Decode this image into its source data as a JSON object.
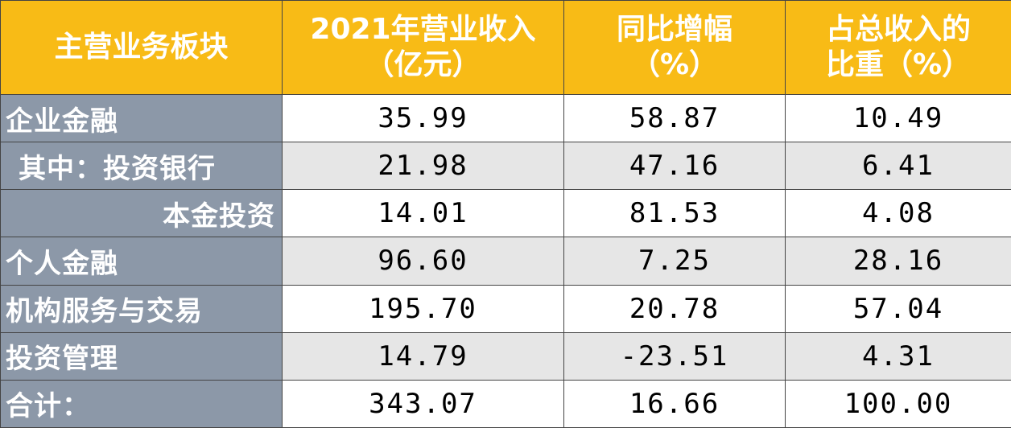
{
  "table": {
    "header": [
      [
        "主营业务板块"
      ],
      [
        "2021年营业收入",
        "（亿元）"
      ],
      [
        "同比增幅",
        "（%）"
      ],
      [
        "占总收入的",
        "比重（%）"
      ]
    ],
    "rows": [
      [
        "企业金融",
        "35.99",
        "58.87",
        "10.49"
      ],
      [
        "其中：投资银行",
        "21.98",
        "47.16",
        "6.41"
      ],
      [
        "本金投资",
        "14.01",
        "81.53",
        "4.08"
      ],
      [
        "个人金融",
        "96.60",
        "7.25",
        "28.16"
      ],
      [
        "机构服务与交易",
        "195.70",
        "20.78",
        "57.04"
      ],
      [
        "投资管理",
        "14.79",
        "-23.51",
        "4.31"
      ],
      [
        "合计：",
        "343.07",
        "16.66",
        "100.00"
      ]
    ]
  }
}
